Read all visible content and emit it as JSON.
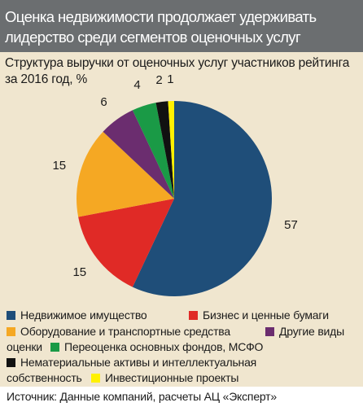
{
  "header": {
    "title_line1": "Оценка недвижимости продолжает удерживать",
    "title_line2": "лидерство среди сегментов оценочных услуг"
  },
  "subtitle": "Структура выручки от оценочных услуг участников рейтинга за 2016 год, %",
  "colors": {
    "real_estate": "#1f4e79",
    "business": "#e02a26",
    "equipment": "#f5a823",
    "other": "#6b2d6f",
    "fixed_assets": "#1a9a46",
    "intangible": "#111111",
    "investment": "#fff100"
  },
  "chart_data": {
    "type": "pie",
    "title": "Структура выручки от оценочных услуг участников рейтинга за 2016 год, %",
    "series": [
      {
        "name": "Недвижимое имущество",
        "value": 57,
        "color": "#1f4e79",
        "label": "57"
      },
      {
        "name": "Бизнес и ценные бумаги",
        "value": 15,
        "color": "#e02a26",
        "label": "15"
      },
      {
        "name": "Оборудование и транспортные средства",
        "value": 15,
        "color": "#f5a823",
        "label": "15"
      },
      {
        "name": "Другие виды оценки",
        "value": 6,
        "color": "#6b2d6f",
        "label": "6"
      },
      {
        "name": "Переоценка основных фондов, МСФО",
        "value": 4,
        "color": "#1a9a46",
        "label": "4"
      },
      {
        "name": "Нематериальные активы и интеллектуальная собственность",
        "value": 2,
        "color": "#111111",
        "label": "2"
      },
      {
        "name": "Инвестиционные проекты",
        "value": 1,
        "color": "#fff100",
        "label": "1"
      }
    ],
    "legend_position": "bottom"
  },
  "legend": {
    "real_estate": "Недвижимое имущество",
    "business": "Бизнес и ценные бумаги",
    "equipment": "Оборудование и транспортные средства",
    "other_a": "Другие виды",
    "other_b": "оценки",
    "fixed_assets": "Переоценка основных фондов, МСФО",
    "intangible_a": "Нематериальные активы и интеллектуальная",
    "intangible_b": "собственность",
    "investment": "Инвестиционные проекты"
  },
  "source": "Источник: Данные компаний, расчеты АЦ «Эксперт»"
}
